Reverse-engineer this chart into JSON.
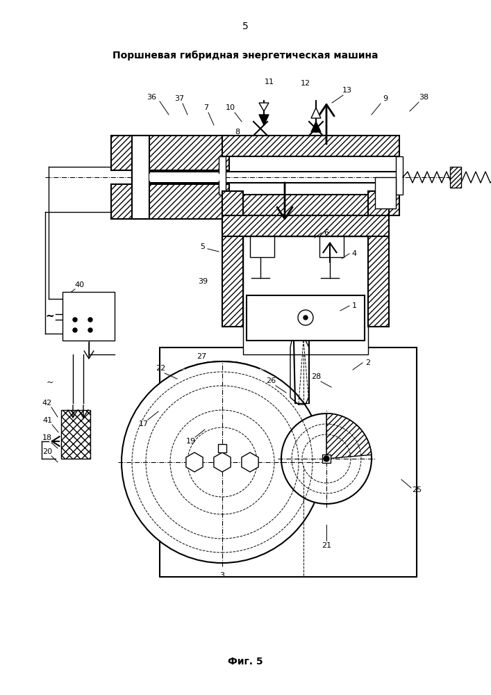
{
  "title": "Поршневая гибридная энергетическая машина",
  "page_number": "5",
  "fig_label": "Фиг. 5",
  "bg_color": "#ffffff",
  "line_color": "#000000"
}
